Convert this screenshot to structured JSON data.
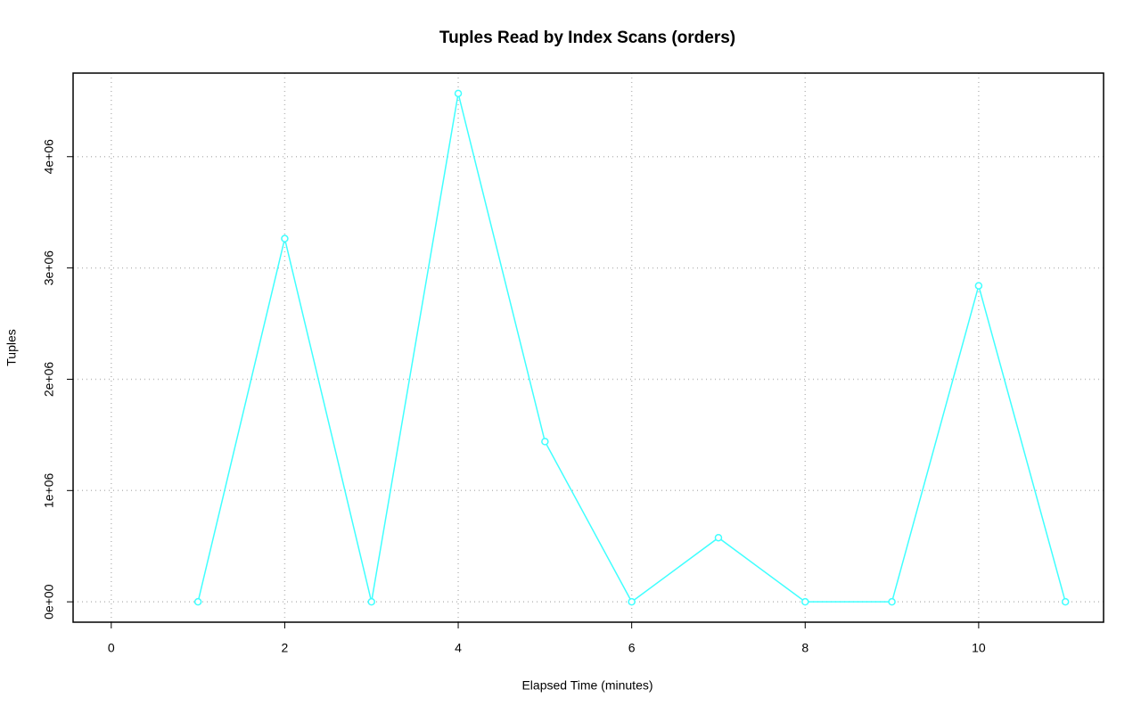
{
  "chart_data": {
    "type": "line",
    "title": "Tuples Read by Index Scans (orders)",
    "x_label": "Elapsed Time (minutes)",
    "y_label": "Tuples",
    "x": [
      1,
      2,
      3,
      4,
      5,
      6,
      7,
      8,
      9,
      10,
      11
    ],
    "series": [
      {
        "name": "orders",
        "color": "#40ffff",
        "values": [
          0,
          3264000,
          0,
          4568000,
          1440000,
          0,
          576000,
          0,
          0,
          2840000,
          0
        ]
      }
    ],
    "xlim": [
      -0.44,
      11.44
    ],
    "xticks": [
      0,
      2,
      4,
      6,
      8,
      10
    ],
    "ylim": [
      -183000,
      4751000
    ],
    "yticks": [
      {
        "value": 0,
        "label": "0e+00"
      },
      {
        "value": 1000000,
        "label": "1e+06"
      },
      {
        "value": 2000000,
        "label": "2e+06"
      },
      {
        "value": 3000000,
        "label": "3e+06"
      },
      {
        "value": 4000000,
        "label": "4e+06"
      }
    ],
    "grid": true,
    "markers": true
  }
}
